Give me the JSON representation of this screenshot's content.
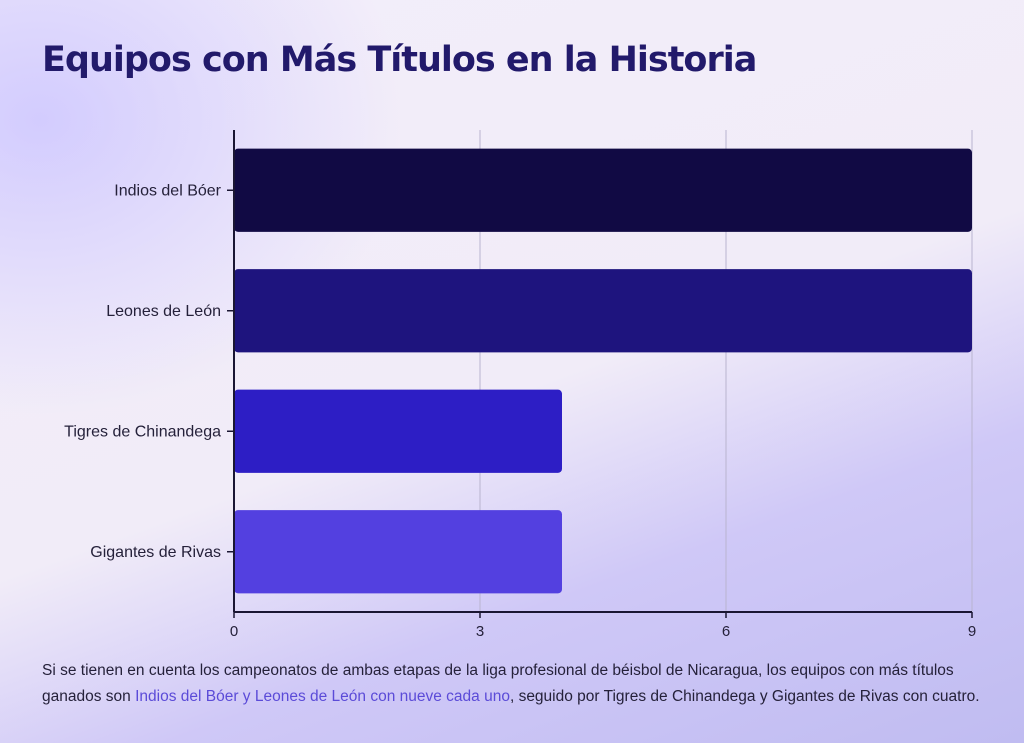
{
  "title": "Equipos con Más Títulos en la Historia",
  "caption": {
    "before": "Si se tienen en cuenta los campeonatos de ambas etapas de la liga profesional de béisbol de Nicaragua, los equipos con más títulos ganados son ",
    "highlight": "Indios del Bóer y Leones de León con nueve cada uno",
    "after": ", seguido por Tigres de Chinandega y Gigantes de Rivas con cuatro."
  },
  "colors": {
    "highlight_text": "#5b4bd8",
    "axis": "#1a1633",
    "grid": "#b9b4cf"
  },
  "chart_data": {
    "type": "bar",
    "orientation": "horizontal",
    "categories": [
      "Indios del Bóer",
      "Leones de León",
      "Tigres de Chinandega",
      "Gigantes de Rivas"
    ],
    "values": [
      9,
      9,
      4,
      4
    ],
    "bar_colors": [
      "#110a44",
      "#1e147e",
      "#2d1ec5",
      "#5340e0"
    ],
    "xlim": [
      0,
      9
    ],
    "xticks": [
      0,
      3,
      6,
      9
    ],
    "grid": true
  }
}
